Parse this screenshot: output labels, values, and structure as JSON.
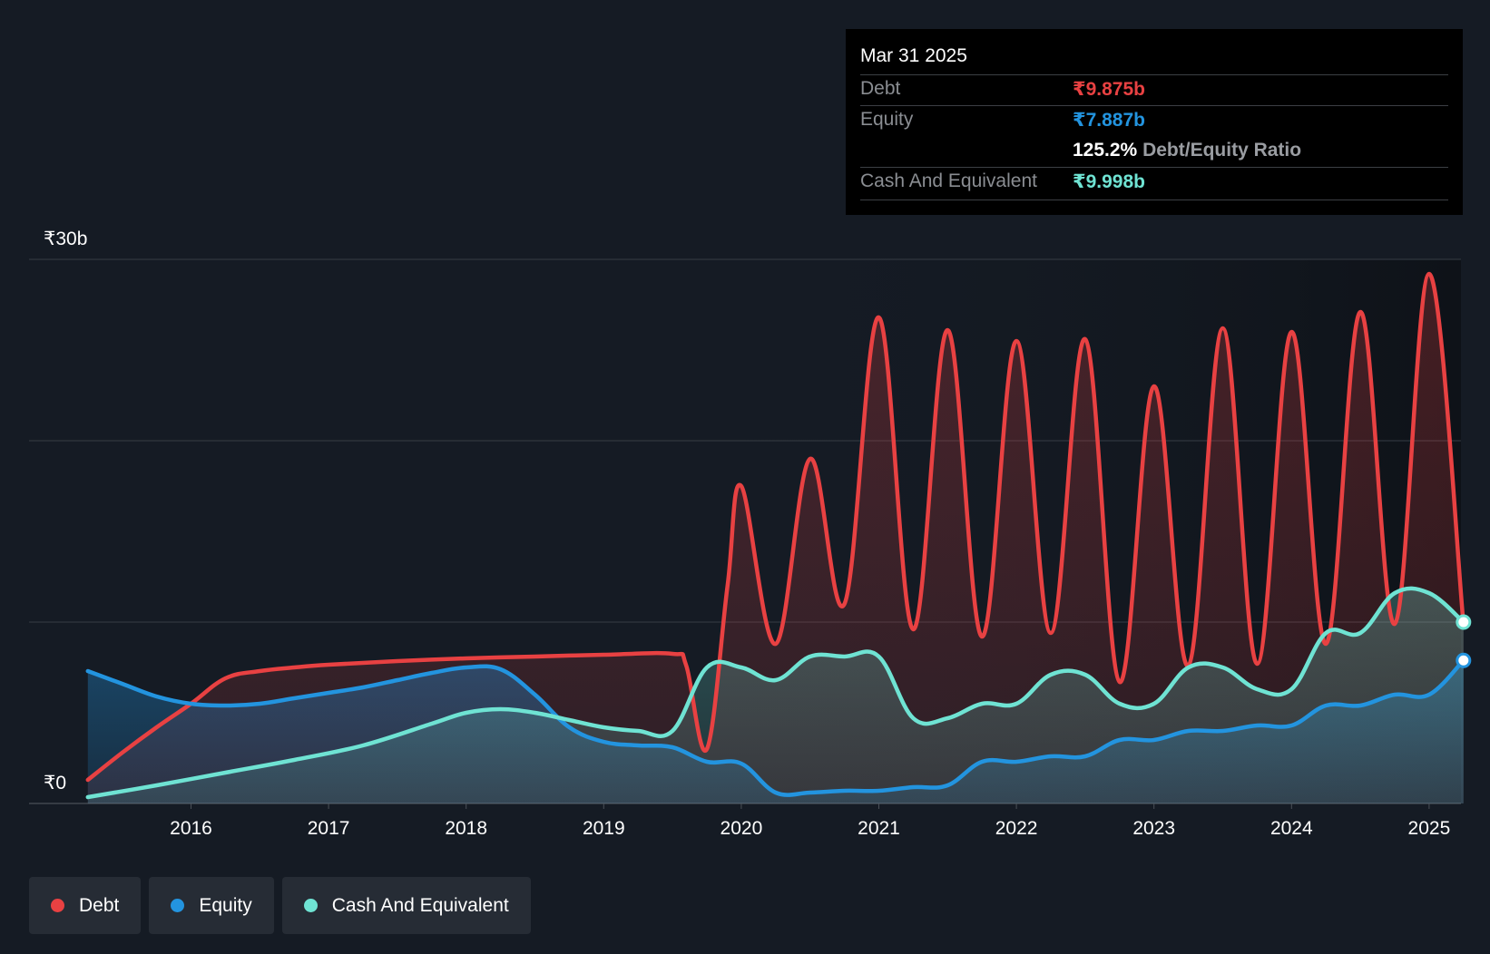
{
  "chart_data": {
    "type": "area",
    "currency_symbol": "₹",
    "y_unit": "billions",
    "ylim": [
      0,
      30
    ],
    "y_tick_labels": [
      "₹0",
      "₹30b"
    ],
    "gridlines": [
      0,
      10,
      20,
      30
    ],
    "x_tick_labels": [
      "2016",
      "2017",
      "2018",
      "2019",
      "2020",
      "2021",
      "2022",
      "2023",
      "2024",
      "2025"
    ],
    "x_ticks": [
      2016,
      2017,
      2018,
      2019,
      2020,
      2021,
      2022,
      2023,
      2024,
      2025
    ],
    "xlim": [
      2014.8,
      2025.25
    ],
    "series": [
      {
        "name": "Debt",
        "color": "#e84142",
        "points": [
          [
            2015.25,
            1.3
          ],
          [
            2015.5,
            2.8
          ],
          [
            2015.75,
            4.2
          ],
          [
            2016.0,
            5.5
          ],
          [
            2016.25,
            6.9
          ],
          [
            2016.5,
            7.3
          ],
          [
            2016.75,
            7.5
          ],
          [
            2017.0,
            7.65
          ],
          [
            2017.5,
            7.85
          ],
          [
            2018.0,
            8.0
          ],
          [
            2018.5,
            8.1
          ],
          [
            2019.0,
            8.2
          ],
          [
            2019.5,
            8.25
          ],
          [
            2019.6,
            7.6
          ],
          [
            2019.75,
            3.0
          ],
          [
            2019.9,
            12.0
          ],
          [
            2020.0,
            17.5
          ],
          [
            2020.25,
            8.8
          ],
          [
            2020.5,
            19.0
          ],
          [
            2020.75,
            11.0
          ],
          [
            2021.0,
            26.8
          ],
          [
            2021.25,
            9.6
          ],
          [
            2021.5,
            26.1
          ],
          [
            2021.75,
            9.2
          ],
          [
            2022.0,
            25.5
          ],
          [
            2022.25,
            9.4
          ],
          [
            2022.5,
            25.6
          ],
          [
            2022.75,
            6.7
          ],
          [
            2023.0,
            23.0
          ],
          [
            2023.25,
            7.6
          ],
          [
            2023.5,
            26.2
          ],
          [
            2023.75,
            7.7
          ],
          [
            2024.0,
            26.0
          ],
          [
            2024.25,
            8.8
          ],
          [
            2024.5,
            27.1
          ],
          [
            2024.75,
            9.9
          ],
          [
            2025.0,
            29.2
          ],
          [
            2025.25,
            9.875
          ]
        ]
      },
      {
        "name": "Equity",
        "color": "#2394df",
        "points": [
          [
            2015.25,
            7.3
          ],
          [
            2015.5,
            6.6
          ],
          [
            2015.75,
            5.9
          ],
          [
            2016.0,
            5.5
          ],
          [
            2016.25,
            5.4
          ],
          [
            2016.5,
            5.5
          ],
          [
            2016.75,
            5.8
          ],
          [
            2017.0,
            6.1
          ],
          [
            2017.25,
            6.4
          ],
          [
            2017.5,
            6.8
          ],
          [
            2017.75,
            7.2
          ],
          [
            2018.0,
            7.5
          ],
          [
            2018.25,
            7.4
          ],
          [
            2018.5,
            6.0
          ],
          [
            2018.75,
            4.2
          ],
          [
            2019.0,
            3.4
          ],
          [
            2019.25,
            3.2
          ],
          [
            2019.5,
            3.1
          ],
          [
            2019.75,
            2.3
          ],
          [
            2020.0,
            2.2
          ],
          [
            2020.25,
            0.6
          ],
          [
            2020.5,
            0.6
          ],
          [
            2020.75,
            0.7
          ],
          [
            2021.0,
            0.7
          ],
          [
            2021.25,
            0.9
          ],
          [
            2021.5,
            1.0
          ],
          [
            2021.75,
            2.3
          ],
          [
            2022.0,
            2.3
          ],
          [
            2022.25,
            2.6
          ],
          [
            2022.5,
            2.6
          ],
          [
            2022.75,
            3.5
          ],
          [
            2023.0,
            3.5
          ],
          [
            2023.25,
            4.0
          ],
          [
            2023.5,
            4.0
          ],
          [
            2023.75,
            4.3
          ],
          [
            2024.0,
            4.3
          ],
          [
            2024.25,
            5.4
          ],
          [
            2024.5,
            5.4
          ],
          [
            2024.75,
            6.0
          ],
          [
            2025.0,
            6.0
          ],
          [
            2025.25,
            7.887
          ]
        ]
      },
      {
        "name": "Cash And Equivalent",
        "color": "#6fe3d3",
        "points": [
          [
            2015.25,
            0.35
          ],
          [
            2015.75,
            1.0
          ],
          [
            2016.25,
            1.7
          ],
          [
            2016.75,
            2.4
          ],
          [
            2017.25,
            3.2
          ],
          [
            2017.75,
            4.4
          ],
          [
            2018.0,
            5.0
          ],
          [
            2018.25,
            5.2
          ],
          [
            2018.5,
            5.0
          ],
          [
            2018.75,
            4.6
          ],
          [
            2019.0,
            4.2
          ],
          [
            2019.25,
            4.0
          ],
          [
            2019.5,
            4.0
          ],
          [
            2019.75,
            7.5
          ],
          [
            2020.0,
            7.5
          ],
          [
            2020.25,
            6.8
          ],
          [
            2020.5,
            8.1
          ],
          [
            2020.75,
            8.1
          ],
          [
            2021.0,
            8.1
          ],
          [
            2021.25,
            4.7
          ],
          [
            2021.5,
            4.7
          ],
          [
            2021.75,
            5.5
          ],
          [
            2022.0,
            5.5
          ],
          [
            2022.25,
            7.1
          ],
          [
            2022.5,
            7.1
          ],
          [
            2022.75,
            5.5
          ],
          [
            2023.0,
            5.5
          ],
          [
            2023.25,
            7.5
          ],
          [
            2023.5,
            7.5
          ],
          [
            2023.75,
            6.3
          ],
          [
            2024.0,
            6.3
          ],
          [
            2024.25,
            9.4
          ],
          [
            2024.5,
            9.4
          ],
          [
            2024.75,
            11.6
          ],
          [
            2025.0,
            11.6
          ],
          [
            2025.25,
            9.998
          ]
        ]
      }
    ],
    "tooltip": {
      "date": "Mar 31 2025",
      "rows": [
        {
          "label": "Debt",
          "value": "₹9.875b",
          "color": "#e84142"
        },
        {
          "label": "Equity",
          "value": "₹7.887b",
          "color": "#2394df"
        },
        {
          "label": "Cash And Equivalent",
          "value": "₹9.998b",
          "color": "#6fe3d3"
        }
      ],
      "ratio_value": "125.2%",
      "ratio_label": "Debt/Equity Ratio"
    },
    "legend": [
      {
        "name": "Debt",
        "color": "#e84142"
      },
      {
        "name": "Equity",
        "color": "#2394df"
      },
      {
        "name": "Cash And Equivalent",
        "color": "#6fe3d3"
      }
    ],
    "legend_position": "bottom-left",
    "grid": true
  }
}
